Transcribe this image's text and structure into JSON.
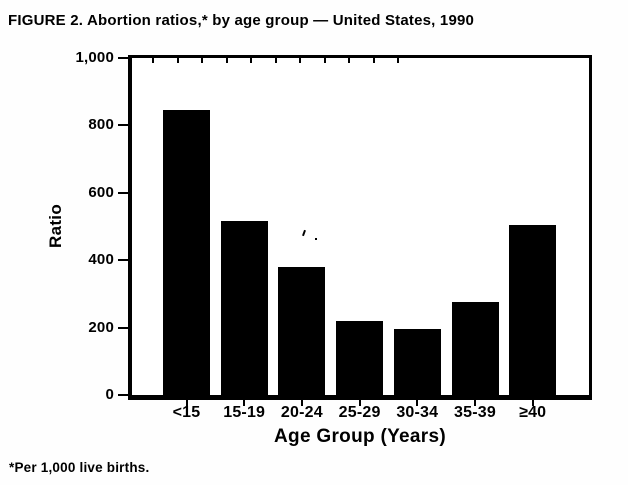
{
  "figure": {
    "title": "FIGURE 2. Abortion ratios,* by age group — United States, 1990",
    "footnote": "*Per 1,000 live births."
  },
  "chart_data": {
    "type": "bar",
    "title": "FIGURE 2. Abortion ratios,* by age group — United States, 1990",
    "categories": [
      "<15",
      "15-19",
      "20-24",
      "25-29",
      "30-34",
      "35-39",
      "≥40"
    ],
    "values": [
      845,
      515,
      380,
      220,
      195,
      275,
      505
    ],
    "xlabel": "Age Group (Years)",
    "ylabel": "Ratio",
    "ylim": [
      0,
      1000
    ],
    "yticks": [
      0,
      200,
      400,
      600,
      800,
      1000
    ],
    "ytick_labels": [
      "0",
      "200",
      "400",
      "600",
      "800",
      "1,000"
    ],
    "bar_color": "#000000",
    "background": "#ffffff",
    "grid": false,
    "legend": false,
    "footnote": "*Per 1,000 live births."
  }
}
